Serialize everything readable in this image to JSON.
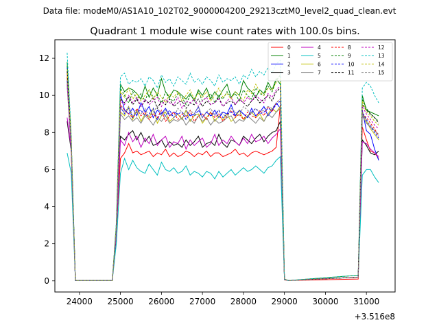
{
  "header": {
    "suptitle": "Data file: modeM0/AS1A10_102T02_9000004200_29213cztM0_level2_quad_clean.evt"
  },
  "chart_data": {
    "type": "line",
    "title": "Quadrant 1 module wise count rates with 100.0s bins.",
    "xlabel": "",
    "ylabel": "",
    "x_offset_label": "+3.516e8",
    "xlim": [
      23400,
      31700
    ],
    "ylim": [
      -0.6,
      13.0
    ],
    "xticks": [
      24000,
      25000,
      26000,
      27000,
      28000,
      29000,
      30000,
      31000
    ],
    "yticks": [
      0,
      2,
      4,
      6,
      8,
      10,
      12
    ],
    "legend_position": "top-right",
    "x": [
      23700,
      23800,
      23900,
      24800,
      24900,
      25000,
      25100,
      25200,
      25300,
      25400,
      25500,
      25600,
      25700,
      25800,
      25900,
      26000,
      26100,
      26200,
      26300,
      26400,
      26500,
      26600,
      26700,
      26800,
      26900,
      27000,
      27100,
      27200,
      27300,
      27400,
      27500,
      27600,
      27700,
      27800,
      27900,
      28000,
      28100,
      28200,
      28300,
      28400,
      28500,
      28600,
      28700,
      28800,
      28900,
      29000,
      29100,
      30800,
      30900,
      31000,
      31100,
      31200,
      31300
    ],
    "series": [
      {
        "name": "0",
        "color": "#ff0000",
        "dash": false,
        "values": [
          11.0,
          6.9,
          0.02,
          0.02,
          2.6,
          6.6,
          6.9,
          7.4,
          6.9,
          7.0,
          6.8,
          6.9,
          7.0,
          6.7,
          6.9,
          6.8,
          7.1,
          6.7,
          6.9,
          6.7,
          6.8,
          7.0,
          6.9,
          6.7,
          6.9,
          6.8,
          7.0,
          6.7,
          6.9,
          6.9,
          6.7,
          6.8,
          6.9,
          7.1,
          6.8,
          6.9,
          6.7,
          6.9,
          7.0,
          6.9,
          6.8,
          6.9,
          7.0,
          7.2,
          9.5,
          0.05,
          0.02,
          0.1,
          8.3,
          7.6,
          7.0,
          6.9,
          6.6
        ]
      },
      {
        "name": "1",
        "color": "#008000",
        "dash": false,
        "values": [
          11.8,
          7.6,
          0.02,
          0.02,
          3.0,
          10.6,
          10.2,
          10.4,
          10.3,
          10.1,
          9.8,
          10.5,
          9.9,
          10.4,
          10.0,
          10.9,
          10.2,
          9.9,
          10.3,
          10.2,
          10.0,
          9.8,
          10.1,
          9.7,
          10.3,
          10.0,
          10.4,
          9.8,
          10.2,
          9.9,
          10.3,
          10.6,
          9.9,
          10.2,
          10.0,
          10.8,
          10.4,
          10.2,
          9.9,
          10.3,
          10.1,
          10.7,
          10.3,
          10.9,
          10.6,
          0.1,
          0.02,
          0.3,
          10.0,
          9.2,
          9.1,
          9.0,
          8.9
        ]
      },
      {
        "name": "2",
        "color": "#0000ff",
        "dash": false,
        "values": [
          11.5,
          7.4,
          0.02,
          0.02,
          2.9,
          10.1,
          9.2,
          9.0,
          9.3,
          8.9,
          9.6,
          9.1,
          9.4,
          8.8,
          9.2,
          9.0,
          9.3,
          8.9,
          9.1,
          9.0,
          8.7,
          9.2,
          8.9,
          9.0,
          9.4,
          8.8,
          9.1,
          8.9,
          9.2,
          8.8,
          9.1,
          9.0,
          9.5,
          8.9,
          9.2,
          9.0,
          8.8,
          9.3,
          8.9,
          9.1,
          9.4,
          8.9,
          9.2,
          9.6,
          9.3,
          0.08,
          0.02,
          0.2,
          9.2,
          8.1,
          7.9,
          7.1,
          6.5
        ]
      },
      {
        "name": "3",
        "color": "#000000",
        "dash": false,
        "values": [
          8.6,
          7.0,
          0.02,
          0.02,
          2.4,
          7.8,
          7.6,
          7.9,
          8.1,
          7.6,
          8.0,
          7.5,
          7.8,
          7.3,
          7.4,
          7.6,
          7.2,
          7.5,
          7.3,
          7.4,
          7.2,
          7.6,
          7.3,
          7.5,
          7.8,
          7.2,
          7.4,
          7.5,
          7.3,
          7.9,
          7.4,
          7.2,
          7.6,
          7.5,
          7.3,
          7.8,
          7.6,
          7.4,
          7.7,
          7.9,
          7.5,
          7.8,
          8.0,
          8.1,
          8.6,
          0.07,
          0.02,
          0.2,
          7.6,
          7.3,
          6.9,
          6.8,
          7.0
        ]
      },
      {
        "name": "4",
        "color": "#bf00bf",
        "dash": false,
        "values": [
          8.8,
          7.1,
          0.02,
          0.02,
          2.5,
          7.6,
          7.3,
          8.0,
          7.5,
          7.8,
          7.2,
          7.7,
          7.4,
          7.9,
          7.3,
          7.6,
          7.8,
          7.2,
          7.5,
          7.4,
          7.8,
          7.1,
          7.6,
          7.3,
          7.5,
          7.7,
          7.2,
          7.4,
          7.9,
          7.3,
          7.6,
          7.4,
          7.8,
          7.5,
          7.3,
          7.7,
          7.4,
          7.9,
          7.5,
          7.6,
          7.8,
          7.4,
          7.7,
          7.9,
          8.2,
          0.08,
          0.02,
          0.2,
          7.5,
          7.4,
          7.1,
          6.9,
          6.7
        ]
      },
      {
        "name": "5",
        "color": "#00bfbf",
        "dash": false,
        "values": [
          6.9,
          5.8,
          0.02,
          0.02,
          2.0,
          5.8,
          6.6,
          6.0,
          6.5,
          6.1,
          5.9,
          5.8,
          6.3,
          6.0,
          5.7,
          6.4,
          6.0,
          5.9,
          6.1,
          5.8,
          5.9,
          6.2,
          5.7,
          5.9,
          5.8,
          5.6,
          5.9,
          5.8,
          5.5,
          5.9,
          5.6,
          5.8,
          6.0,
          5.7,
          5.9,
          6.1,
          5.9,
          6.0,
          6.2,
          6.0,
          5.8,
          6.1,
          6.2,
          6.5,
          6.7,
          0.06,
          0.02,
          0.2,
          5.7,
          6.0,
          6.0,
          5.6,
          5.3
        ]
      },
      {
        "name": "6",
        "color": "#bfbf00",
        "dash": false,
        "values": [
          10.9,
          7.2,
          0.02,
          0.02,
          2.8,
          9.1,
          8.9,
          9.4,
          8.7,
          9.2,
          8.6,
          9.0,
          8.8,
          9.3,
          8.5,
          8.9,
          9.1,
          8.6,
          8.8,
          9.0,
          8.7,
          9.2,
          8.6,
          8.9,
          9.0,
          8.5,
          8.8,
          9.1,
          8.6,
          8.9,
          8.7,
          9.0,
          8.6,
          8.8,
          9.2,
          8.7,
          8.9,
          9.1,
          8.8,
          9.0,
          8.6,
          9.0,
          9.3,
          9.1,
          9.4,
          0.07,
          0.02,
          0.2,
          9.1,
          8.6,
          8.2,
          7.9,
          7.6
        ]
      },
      {
        "name": "7",
        "color": "#808080",
        "dash": false,
        "values": [
          10.5,
          7.0,
          0.02,
          0.02,
          2.7,
          9.0,
          8.7,
          8.9,
          8.6,
          8.8,
          8.5,
          8.9,
          8.7,
          8.4,
          8.8,
          8.6,
          8.9,
          8.5,
          8.7,
          8.6,
          8.8,
          8.4,
          8.7,
          8.5,
          8.9,
          8.6,
          8.8,
          8.4,
          8.7,
          8.5,
          8.6,
          8.8,
          8.9,
          8.5,
          8.7,
          8.6,
          8.9,
          8.7,
          8.5,
          8.8,
          8.6,
          9.0,
          8.8,
          9.1,
          9.3,
          0.07,
          0.02,
          0.2,
          8.9,
          8.5,
          8.3,
          8.1,
          7.9
        ]
      },
      {
        "name": "8",
        "color": "#ff0000",
        "dash": true,
        "values": [
          11.2,
          7.3,
          0.02,
          0.02,
          2.9,
          9.5,
          9.2,
          9.0,
          8.8,
          9.3,
          8.9,
          9.1,
          8.7,
          9.0,
          8.8,
          9.2,
          8.6,
          8.9,
          9.1,
          8.7,
          9.0,
          8.8,
          9.2,
          8.6,
          8.9,
          9.0,
          8.7,
          9.1,
          8.8,
          9.0,
          8.6,
          8.9,
          9.2,
          8.8,
          9.0,
          8.7,
          9.1,
          8.9,
          8.8,
          9.2,
          8.9,
          9.4,
          9.1,
          9.6,
          9.8,
          0.08,
          0.02,
          0.2,
          9.0,
          8.8,
          8.5,
          8.2,
          7.8
        ]
      },
      {
        "name": "9",
        "color": "#008000",
        "dash": true,
        "values": [
          11.6,
          7.5,
          0.02,
          0.02,
          3.0,
          10.4,
          10.0,
          9.6,
          10.2,
          9.8,
          10.1,
          9.7,
          10.3,
          9.9,
          10.0,
          9.6,
          10.2,
          9.8,
          9.7,
          10.1,
          9.9,
          9.5,
          10.0,
          9.8,
          10.2,
          9.7,
          9.9,
          10.1,
          9.6,
          10.0,
          9.8,
          10.2,
          9.9,
          10.1,
          9.7,
          10.3,
          10.0,
          9.8,
          10.4,
          10.1,
          10.0,
          10.5,
          10.2,
          10.8,
          11.1,
          0.09,
          0.02,
          0.2,
          9.8,
          9.3,
          9.0,
          8.8,
          8.6
        ]
      },
      {
        "name": "10",
        "color": "#0000ff",
        "dash": true,
        "values": [
          10.8,
          7.2,
          0.02,
          0.02,
          2.8,
          9.4,
          9.0,
          9.3,
          8.8,
          9.1,
          9.2,
          8.9,
          9.0,
          9.3,
          8.7,
          9.1,
          8.9,
          9.2,
          8.8,
          9.0,
          9.1,
          8.7,
          9.0,
          8.9,
          9.2,
          8.8,
          9.1,
          8.9,
          9.0,
          9.2,
          8.8,
          9.0,
          9.1,
          8.9,
          9.2,
          9.0,
          8.8,
          9.1,
          9.3,
          9.0,
          9.1,
          9.3,
          9.2,
          9.5,
          9.7,
          0.08,
          0.02,
          0.2,
          9.1,
          8.7,
          8.3,
          8.0,
          7.7
        ]
      },
      {
        "name": "11",
        "color": "#000000",
        "dash": true,
        "values": [
          11.3,
          7.4,
          0.02,
          0.02,
          2.9,
          9.8,
          9.6,
          9.9,
          9.5,
          9.8,
          9.4,
          9.7,
          9.6,
          9.9,
          9.3,
          9.7,
          9.5,
          9.8,
          9.4,
          9.6,
          9.7,
          9.3,
          9.6,
          9.5,
          9.8,
          9.4,
          9.7,
          9.5,
          9.6,
          9.9,
          9.4,
          9.6,
          9.7,
          9.5,
          9.8,
          9.6,
          9.4,
          9.7,
          9.9,
          9.6,
          9.8,
          10.0,
          9.7,
          10.2,
          10.4,
          0.08,
          0.02,
          0.2,
          9.5,
          9.2,
          9.0,
          8.8,
          8.5
        ]
      },
      {
        "name": "12",
        "color": "#bf00bf",
        "dash": true,
        "values": [
          10.6,
          7.1,
          0.02,
          0.02,
          2.8,
          9.7,
          9.5,
          10.0,
          9.6,
          9.9,
          9.4,
          9.8,
          9.5,
          9.7,
          9.9,
          9.4,
          9.8,
          9.6,
          9.5,
          9.9,
          9.3,
          9.7,
          9.6,
          9.8,
          9.4,
          9.7,
          9.9,
          9.5,
          9.6,
          9.8,
          9.4,
          9.7,
          9.9,
          9.5,
          9.8,
          9.6,
          9.9,
          9.7,
          10.0,
          9.8,
          9.6,
          10.1,
          9.9,
          10.3,
          10.5,
          0.08,
          0.02,
          0.2,
          9.4,
          9.0,
          8.7,
          8.4,
          8.2
        ]
      },
      {
        "name": "13",
        "color": "#00bfbf",
        "dash": true,
        "values": [
          12.3,
          7.8,
          0.02,
          0.02,
          3.2,
          11.0,
          11.2,
          10.6,
          10.8,
          10.7,
          10.9,
          10.5,
          11.0,
          10.8,
          10.4,
          11.1,
          10.7,
          10.9,
          10.5,
          11.0,
          10.8,
          10.6,
          11.2,
          10.7,
          10.9,
          10.6,
          11.0,
          10.8,
          10.5,
          11.1,
          10.7,
          10.9,
          10.8,
          11.0,
          10.6,
          11.1,
          10.9,
          11.4,
          11.0,
          11.3,
          11.1,
          11.5,
          11.2,
          11.7,
          11.9,
          0.1,
          0.02,
          0.3,
          10.4,
          10.7,
          10.5,
          10.0,
          9.6
        ]
      },
      {
        "name": "14",
        "color": "#bfbf00",
        "dash": true,
        "values": [
          11.4,
          7.6,
          0.02,
          0.02,
          3.0,
          10.2,
          9.9,
          10.4,
          9.8,
          10.1,
          9.7,
          10.0,
          10.3,
          9.8,
          10.2,
          9.9,
          9.6,
          10.1,
          9.9,
          10.2,
          9.7,
          10.0,
          10.3,
          9.8,
          10.1,
          9.9,
          10.2,
          9.7,
          10.0,
          10.4,
          9.9,
          10.1,
          9.8,
          10.2,
          10.0,
          9.7,
          10.3,
          10.1,
          10.6,
          10.2,
          10.0,
          10.4,
          10.3,
          10.7,
          10.9,
          0.09,
          0.02,
          0.2,
          9.7,
          9.1,
          8.9,
          8.6,
          8.4
        ]
      },
      {
        "name": "15",
        "color": "#808080",
        "dash": true,
        "values": [
          10.7,
          7.3,
          0.02,
          0.02,
          2.8,
          9.3,
          9.1,
          9.4,
          8.9,
          9.2,
          9.0,
          9.3,
          8.8,
          9.1,
          9.4,
          8.9,
          9.2,
          9.0,
          8.8,
          9.3,
          9.1,
          8.9,
          9.2,
          9.0,
          9.4,
          8.8,
          9.1,
          9.3,
          8.9,
          9.2,
          9.0,
          8.8,
          9.3,
          9.1,
          8.9,
          9.4,
          9.2,
          9.0,
          9.3,
          9.1,
          9.2,
          9.4,
          9.3,
          9.6,
          9.8,
          0.08,
          0.02,
          0.2,
          9.0,
          8.6,
          8.4,
          8.1,
          7.8
        ]
      }
    ]
  }
}
